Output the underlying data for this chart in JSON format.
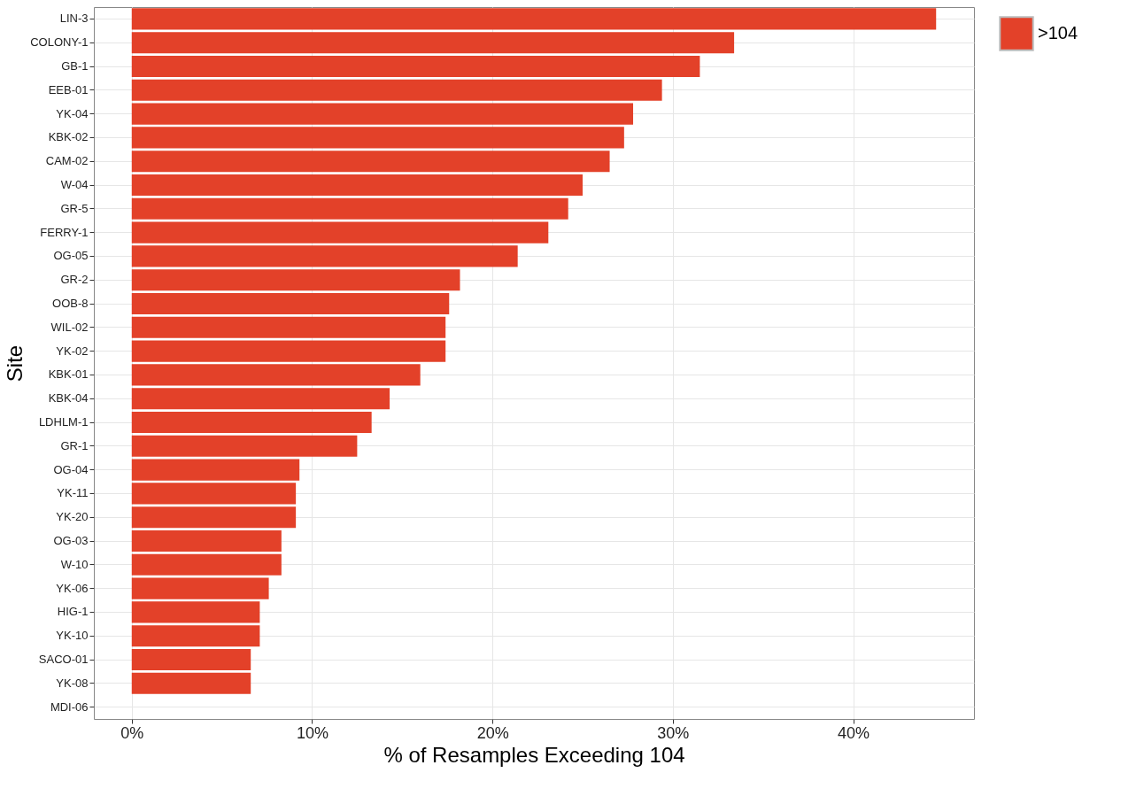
{
  "chart_data": {
    "type": "bar",
    "orientation": "horizontal",
    "xlabel": "% of Resamples Exceeding 104",
    "ylabel": "Site",
    "categories": [
      "LIN-3",
      "COLONY-1",
      "GB-1",
      "EEB-01",
      "YK-04",
      "KBK-02",
      "CAM-02",
      "W-04",
      "GR-5",
      "FERRY-1",
      "OG-05",
      "GR-2",
      "OOB-8",
      "WIL-02",
      "YK-02",
      "KBK-01",
      "KBK-04",
      "LDHLM-1",
      "GR-1",
      "OG-04",
      "YK-11",
      "YK-20",
      "OG-03",
      "W-10",
      "YK-06",
      "HIG-1",
      "YK-10",
      "SACO-01",
      "YK-08",
      "MDI-06"
    ],
    "series": [
      {
        "name": ">104",
        "color": "#e34129",
        "values": [
          44.6,
          33.4,
          31.5,
          29.4,
          27.8,
          27.3,
          26.5,
          25.0,
          24.2,
          23.1,
          21.4,
          18.2,
          17.6,
          17.4,
          17.4,
          16.0,
          14.3,
          13.3,
          12.5,
          9.3,
          9.1,
          9.1,
          8.3,
          8.3,
          7.6,
          7.1,
          7.1,
          6.6,
          6.6,
          0
        ]
      }
    ],
    "xlim": [
      -2.1,
      46.7
    ],
    "xticks": [
      {
        "value": 0,
        "label": "0%"
      },
      {
        "value": 10,
        "label": "10%"
      },
      {
        "value": 20,
        "label": "20%"
      },
      {
        "value": 30,
        "label": "30%"
      },
      {
        "value": 40,
        "label": "40%"
      }
    ],
    "grid": true,
    "legend": "right"
  }
}
